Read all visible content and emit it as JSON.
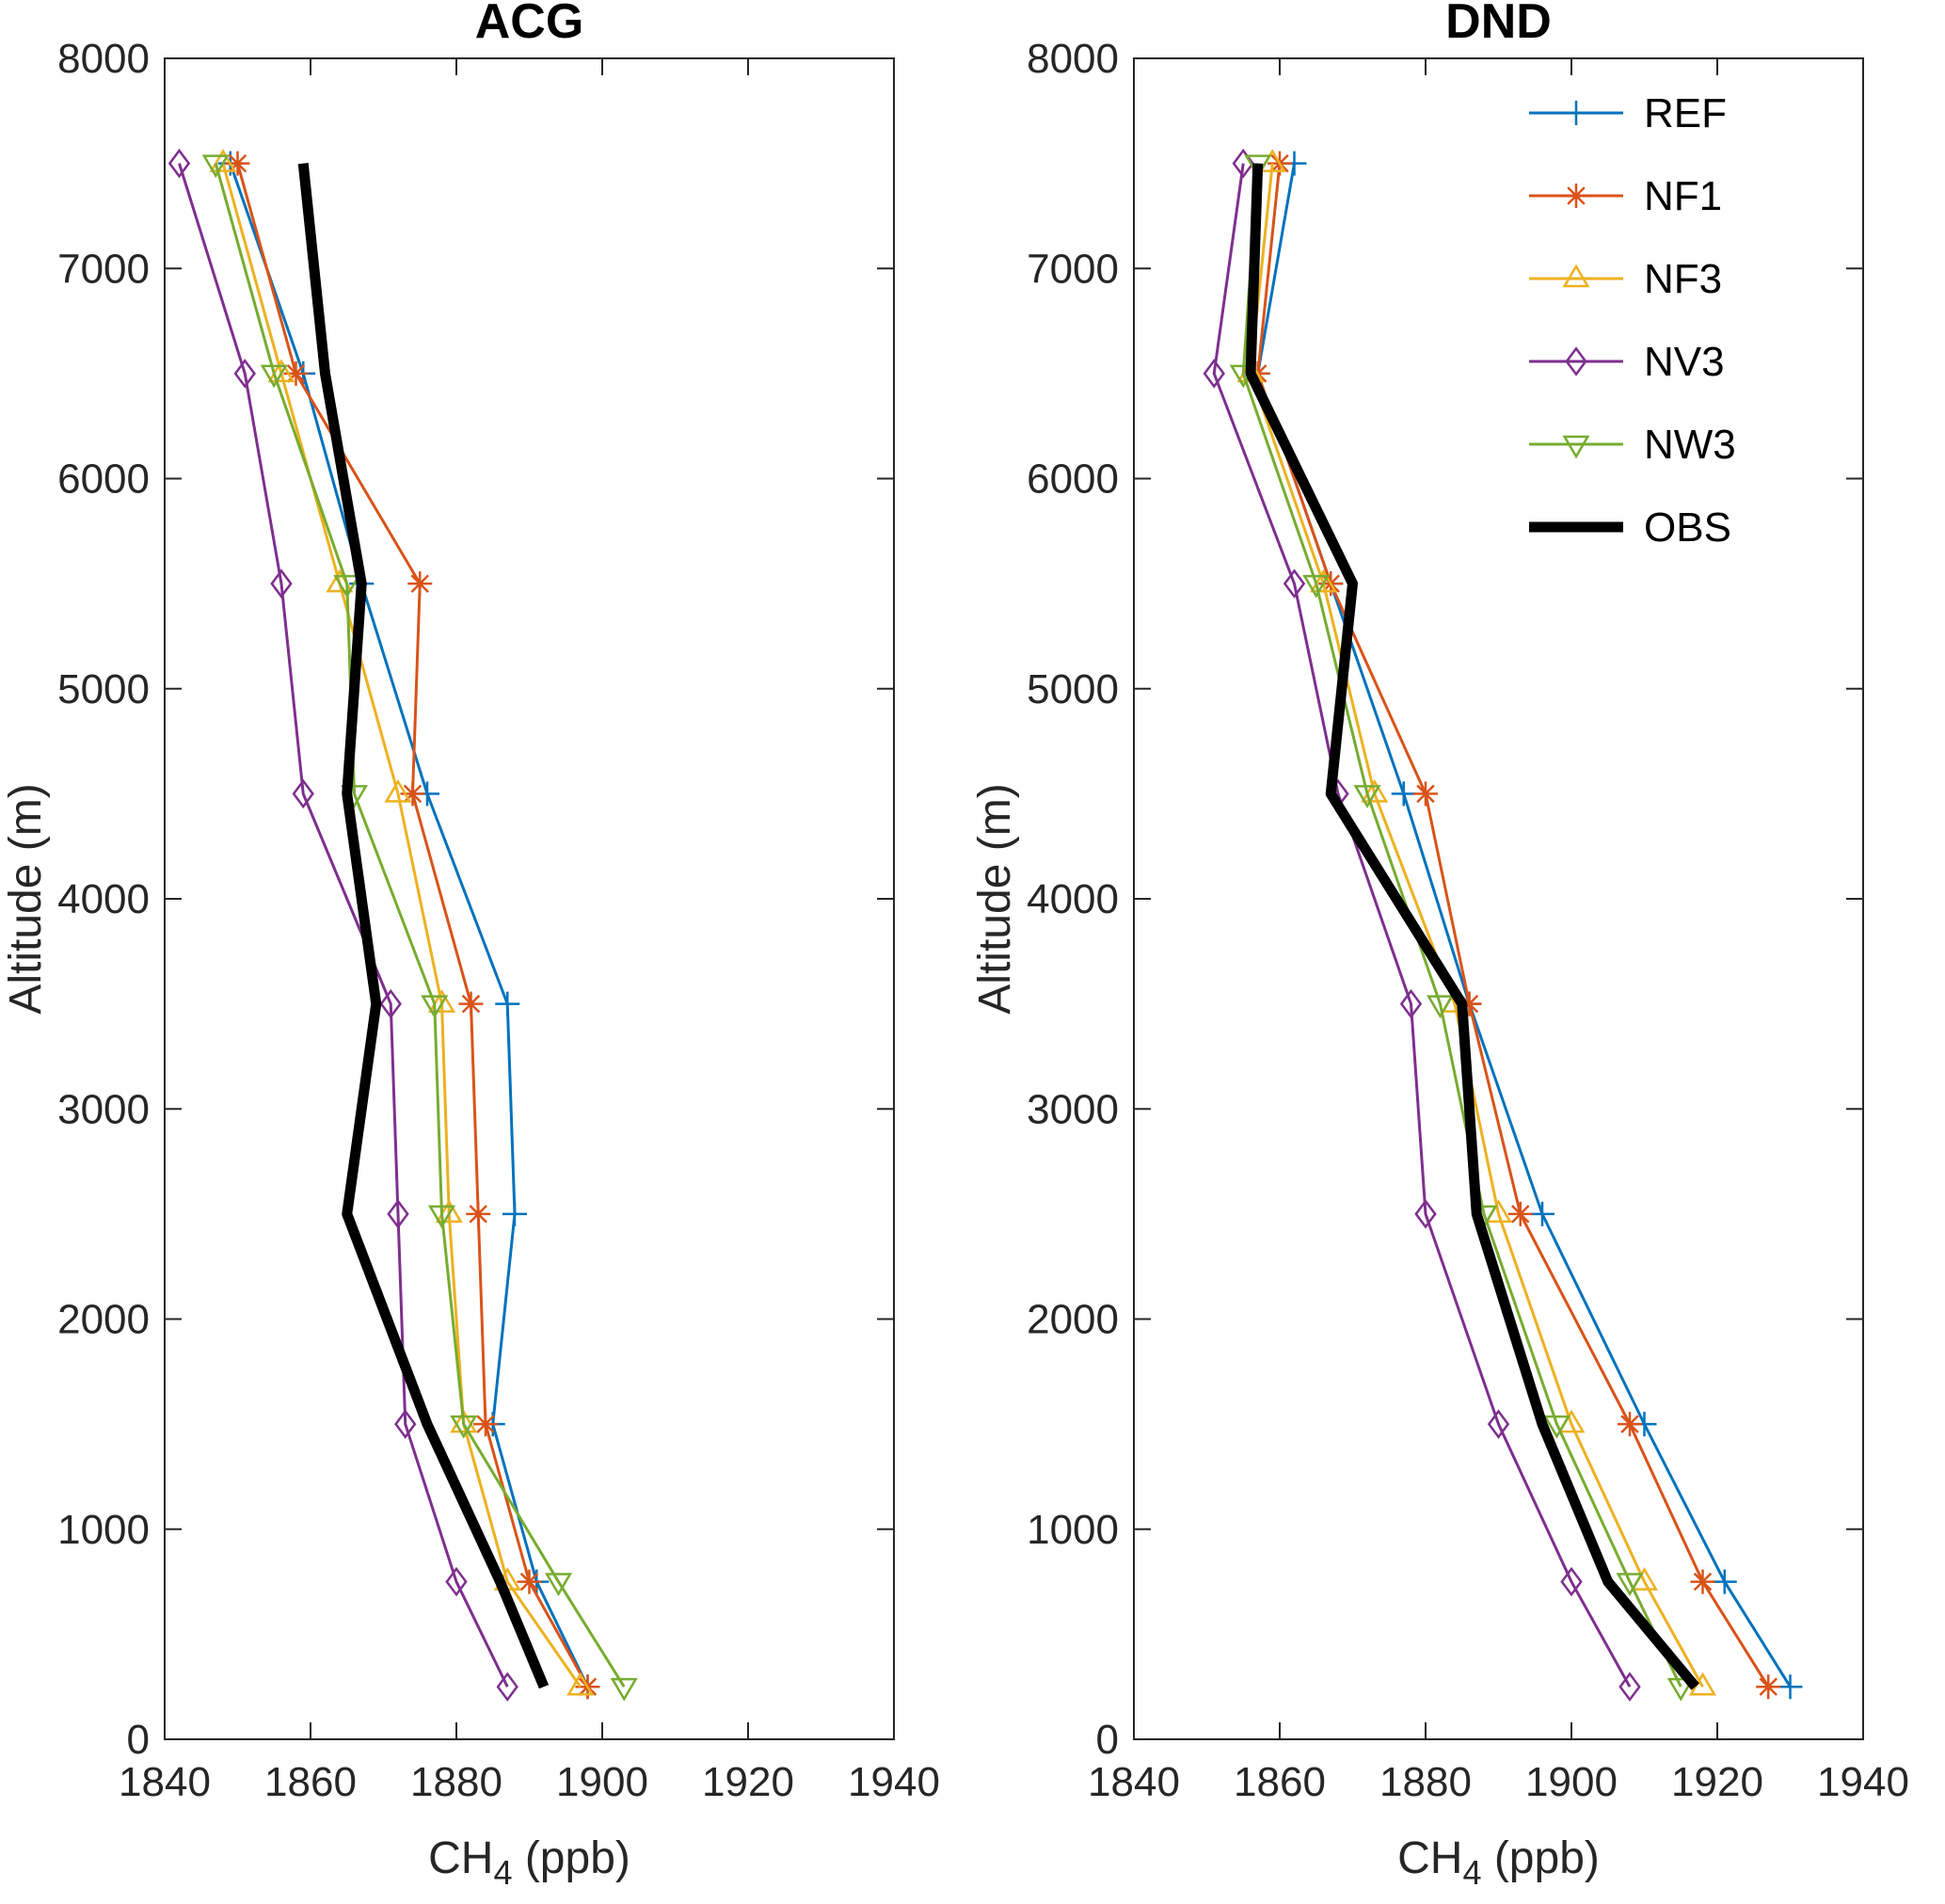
{
  "figure": {
    "description": "Two-panel MATLAB-style vertical profile plot of CH4 mixing ratio versus altitude",
    "background": "#ffffff",
    "axes_color": "#262626"
  },
  "legend": {
    "location": "top-right-inside-DND-panel",
    "entries": [
      "REF",
      "NF1",
      "NF3",
      "NV3",
      "NW3",
      "OBS"
    ]
  },
  "chart_data": [
    {
      "type": "line",
      "title": "ACG",
      "xlabel": "CH4 (ppb)",
      "xlabel_parts": {
        "prefix": "CH",
        "subscript": "4",
        "suffix": " (ppb)"
      },
      "ylabel": "Altitude (m)",
      "xlim": [
        1840,
        1940
      ],
      "ylim": [
        0,
        8000
      ],
      "xticks": [
        1840,
        1860,
        1880,
        1900,
        1920,
        1940
      ],
      "yticks": [
        0,
        1000,
        2000,
        3000,
        4000,
        5000,
        6000,
        7000,
        8000
      ],
      "grid": false,
      "legend": false,
      "altitude_m": [
        250,
        750,
        1500,
        2500,
        3500,
        4500,
        5500,
        6500,
        7500
      ],
      "series": [
        {
          "name": "REF",
          "color": "#0072BD",
          "marker": "plus",
          "line_width": 3,
          "ch4_ppb": [
            1898,
            1891,
            1885,
            1888,
            1887,
            1876,
            1867,
            1859,
            1849
          ]
        },
        {
          "name": "NF1",
          "color": "#D95319",
          "marker": "asterisk",
          "line_width": 3,
          "ch4_ppb": [
            1898,
            1890,
            1884,
            1883,
            1882,
            1874,
            1875,
            1858,
            1850
          ]
        },
        {
          "name": "NF3",
          "color": "#EDB120",
          "marker": "triangle-up",
          "line_width": 3,
          "ch4_ppb": [
            1897,
            1887,
            1881,
            1879,
            1878,
            1872,
            1864,
            1856,
            1848
          ]
        },
        {
          "name": "NV3",
          "color": "#7E2F8E",
          "marker": "diamond",
          "line_width": 3,
          "ch4_ppb": [
            1887,
            1880,
            1873,
            1872,
            1871,
            1859,
            1856,
            1851,
            1842
          ]
        },
        {
          "name": "NW3",
          "color": "#77AC30",
          "marker": "triangle-down",
          "line_width": 3,
          "ch4_ppb": [
            1903,
            1894,
            1881,
            1878,
            1877,
            1866,
            1865,
            1855,
            1847
          ]
        },
        {
          "name": "OBS",
          "color": "#000000",
          "marker": "none",
          "line_width": 11,
          "ch4_ppb": [
            1892,
            1886,
            1876,
            1865,
            1869,
            1865,
            1867,
            1862,
            1859
          ]
        }
      ]
    },
    {
      "type": "line",
      "title": "DND",
      "xlabel": "CH4 (ppb)",
      "xlabel_parts": {
        "prefix": "CH",
        "subscript": "4",
        "suffix": " (ppb)"
      },
      "ylabel": "Altitude (m)",
      "xlim": [
        1840,
        1940
      ],
      "ylim": [
        0,
        8000
      ],
      "xticks": [
        1840,
        1860,
        1880,
        1900,
        1920,
        1940
      ],
      "yticks": [
        0,
        1000,
        2000,
        3000,
        4000,
        5000,
        6000,
        7000,
        8000
      ],
      "grid": false,
      "legend": true,
      "altitude_m": [
        250,
        750,
        1500,
        2500,
        3500,
        4500,
        5500,
        6500,
        7500
      ],
      "series": [
        {
          "name": "REF",
          "color": "#0072BD",
          "marker": "plus",
          "line_width": 3,
          "ch4_ppb": [
            1930,
            1921,
            1910,
            1896,
            1886,
            1877,
            1867,
            1857,
            1862
          ]
        },
        {
          "name": "NF1",
          "color": "#D95319",
          "marker": "asterisk",
          "line_width": 3,
          "ch4_ppb": [
            1927,
            1918,
            1908,
            1893,
            1886,
            1880,
            1867,
            1857,
            1860
          ]
        },
        {
          "name": "NF3",
          "color": "#EDB120",
          "marker": "triangle-up",
          "line_width": 3,
          "ch4_ppb": [
            1918,
            1910,
            1900,
            1890,
            1884,
            1873,
            1866,
            1856,
            1859
          ]
        },
        {
          "name": "NV3",
          "color": "#7E2F8E",
          "marker": "diamond",
          "line_width": 3,
          "ch4_ppb": [
            1908,
            1900,
            1890,
            1880,
            1878,
            1868,
            1862,
            1851,
            1855
          ]
        },
        {
          "name": "NW3",
          "color": "#77AC30",
          "marker": "triangle-down",
          "line_width": 3,
          "ch4_ppb": [
            1915,
            1908,
            1898,
            1888,
            1882,
            1872,
            1865,
            1855,
            1857
          ]
        },
        {
          "name": "OBS",
          "color": "#000000",
          "marker": "none",
          "line_width": 11,
          "ch4_ppb": [
            1917,
            1905,
            1896,
            1887,
            1885,
            1867,
            1870,
            1856,
            1857
          ]
        }
      ]
    }
  ]
}
